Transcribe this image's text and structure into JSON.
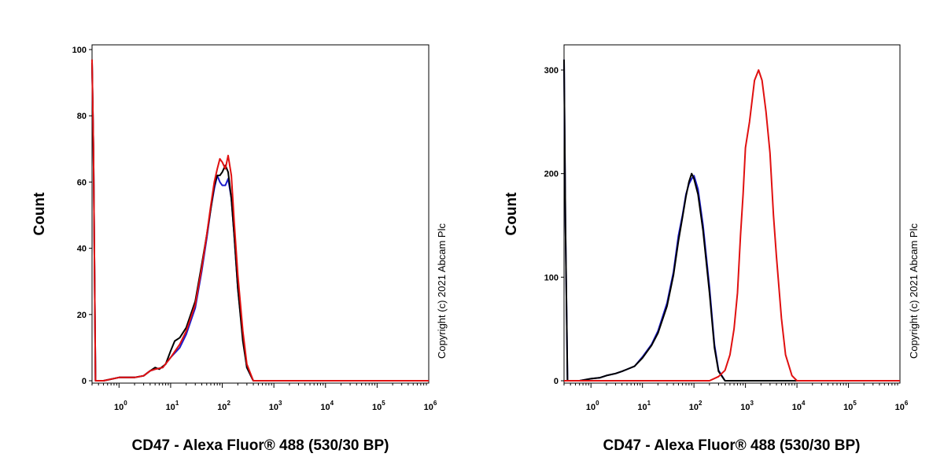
{
  "copyright": "Copyright (c) 2021 Abcam Plc",
  "colors": {
    "series_blue": "#1a1acc",
    "series_black": "#000000",
    "series_red": "#e01010"
  },
  "chart_data": [
    {
      "type": "line",
      "xlabel": "CD47 - Alexa Fluor® 488 (530/30 BP)",
      "ylabel": "Count",
      "xscale": "log",
      "xlim": [
        0.3,
        1000000
      ],
      "ylim": [
        0,
        100
      ],
      "yticks": [
        "0",
        "20",
        "40",
        "60",
        "80",
        "100"
      ],
      "yticks_values": [
        0,
        20,
        40,
        60,
        80,
        100
      ],
      "xticks_values": [
        1,
        10,
        100,
        1000,
        10000,
        100000,
        1000000
      ],
      "xticks_base": "10",
      "xticks_exp": [
        "0",
        "1",
        "2",
        "3",
        "4",
        "5",
        "6"
      ],
      "series": [
        {
          "color": "#1a1acc",
          "x": [
            0.3,
            0.32,
            0.35,
            0.5,
            1,
            2,
            3,
            4,
            5,
            7,
            10,
            15,
            20,
            30,
            40,
            50,
            60,
            70,
            80,
            90,
            100,
            115,
            130,
            150,
            170,
            200,
            250,
            300,
            400,
            1000,
            1000000
          ],
          "y": [
            96,
            70,
            0,
            0,
            1,
            1,
            1.5,
            3,
            3.5,
            4,
            7,
            10,
            14,
            22,
            33,
            43,
            52,
            58,
            62,
            60,
            59,
            59,
            61,
            55,
            44,
            28,
            13,
            4,
            0,
            0,
            0
          ]
        },
        {
          "color": "#000000",
          "x": [
            0.3,
            0.32,
            0.35,
            0.5,
            1,
            2,
            3,
            4,
            5,
            6,
            8,
            10,
            12,
            15,
            20,
            30,
            40,
            50,
            60,
            70,
            80,
            90,
            100,
            115,
            130,
            150,
            170,
            200,
            250,
            300,
            400,
            1000,
            1000000
          ],
          "y": [
            96,
            70,
            0,
            0,
            1,
            1,
            1.5,
            3,
            4,
            3.5,
            5,
            9,
            12,
            13,
            16,
            24,
            35,
            44,
            52,
            59,
            62,
            62,
            63,
            65,
            63,
            55,
            44,
            28,
            12,
            4,
            0,
            0,
            0
          ]
        },
        {
          "color": "#e01010",
          "x": [
            0.3,
            0.32,
            0.35,
            0.5,
            1,
            2,
            3,
            4,
            5,
            7,
            10,
            15,
            20,
            30,
            40,
            50,
            60,
            70,
            80,
            90,
            100,
            115,
            130,
            150,
            170,
            200,
            250,
            300,
            400,
            1000,
            1000000
          ],
          "y": [
            97,
            70,
            0,
            0,
            1,
            1,
            1.5,
            3,
            3.5,
            4,
            7,
            11,
            15,
            23,
            34,
            44,
            53,
            60,
            64,
            67,
            66,
            64,
            68,
            62,
            48,
            32,
            15,
            5,
            0,
            0,
            0
          ]
        }
      ]
    },
    {
      "type": "line",
      "xlabel": "CD47 - Alexa Fluor® 488 (530/30 BP)",
      "ylabel": "Count",
      "xscale": "log",
      "xlim": [
        0.3,
        1000000
      ],
      "ylim": [
        0,
        325
      ],
      "yticks": [
        "0",
        "100",
        "200",
        "300"
      ],
      "yticks_values": [
        0,
        100,
        200,
        300
      ],
      "xticks_values": [
        1,
        10,
        100,
        1000,
        10000,
        100000,
        1000000
      ],
      "xticks_base": "10",
      "xticks_exp": [
        "0",
        "1",
        "2",
        "3",
        "4",
        "5",
        "6"
      ],
      "series": [
        {
          "color": "#1a1acc",
          "x": [
            0.3,
            0.32,
            0.35,
            0.6,
            1,
            1.5,
            2,
            3,
            4,
            5,
            7,
            10,
            15,
            20,
            30,
            40,
            50,
            60,
            70,
            80,
            90,
            100,
            120,
            150,
            200,
            250,
            300,
            400,
            1000000
          ],
          "y": [
            310,
            150,
            0,
            0,
            2,
            3,
            5,
            7,
            9,
            11,
            14,
            23,
            35,
            48,
            75,
            105,
            140,
            160,
            180,
            190,
            195,
            198,
            185,
            150,
            90,
            35,
            10,
            0,
            0
          ]
        },
        {
          "color": "#000000",
          "x": [
            0.3,
            0.32,
            0.35,
            0.6,
            1,
            1.5,
            2,
            3,
            4,
            5,
            7,
            10,
            15,
            20,
            30,
            40,
            50,
            60,
            70,
            80,
            90,
            100,
            120,
            150,
            200,
            250,
            300,
            400,
            1000000
          ],
          "y": [
            310,
            150,
            0,
            0,
            2,
            3,
            5,
            7,
            9,
            11,
            14,
            22,
            34,
            46,
            72,
            102,
            135,
            158,
            178,
            192,
            200,
            195,
            180,
            145,
            85,
            32,
            9,
            0,
            0
          ]
        },
        {
          "color": "#e01010",
          "x": [
            0.3,
            200,
            300,
            400,
            500,
            600,
            700,
            800,
            900,
            1000,
            1200,
            1500,
            1800,
            2100,
            2500,
            3000,
            3500,
            4000,
            5000,
            6000,
            8000,
            10000,
            1000000
          ],
          "y": [
            0,
            0,
            4,
            10,
            25,
            50,
            85,
            140,
            180,
            225,
            250,
            290,
            300,
            290,
            260,
            220,
            160,
            120,
            60,
            25,
            5,
            0,
            0
          ]
        }
      ]
    }
  ]
}
